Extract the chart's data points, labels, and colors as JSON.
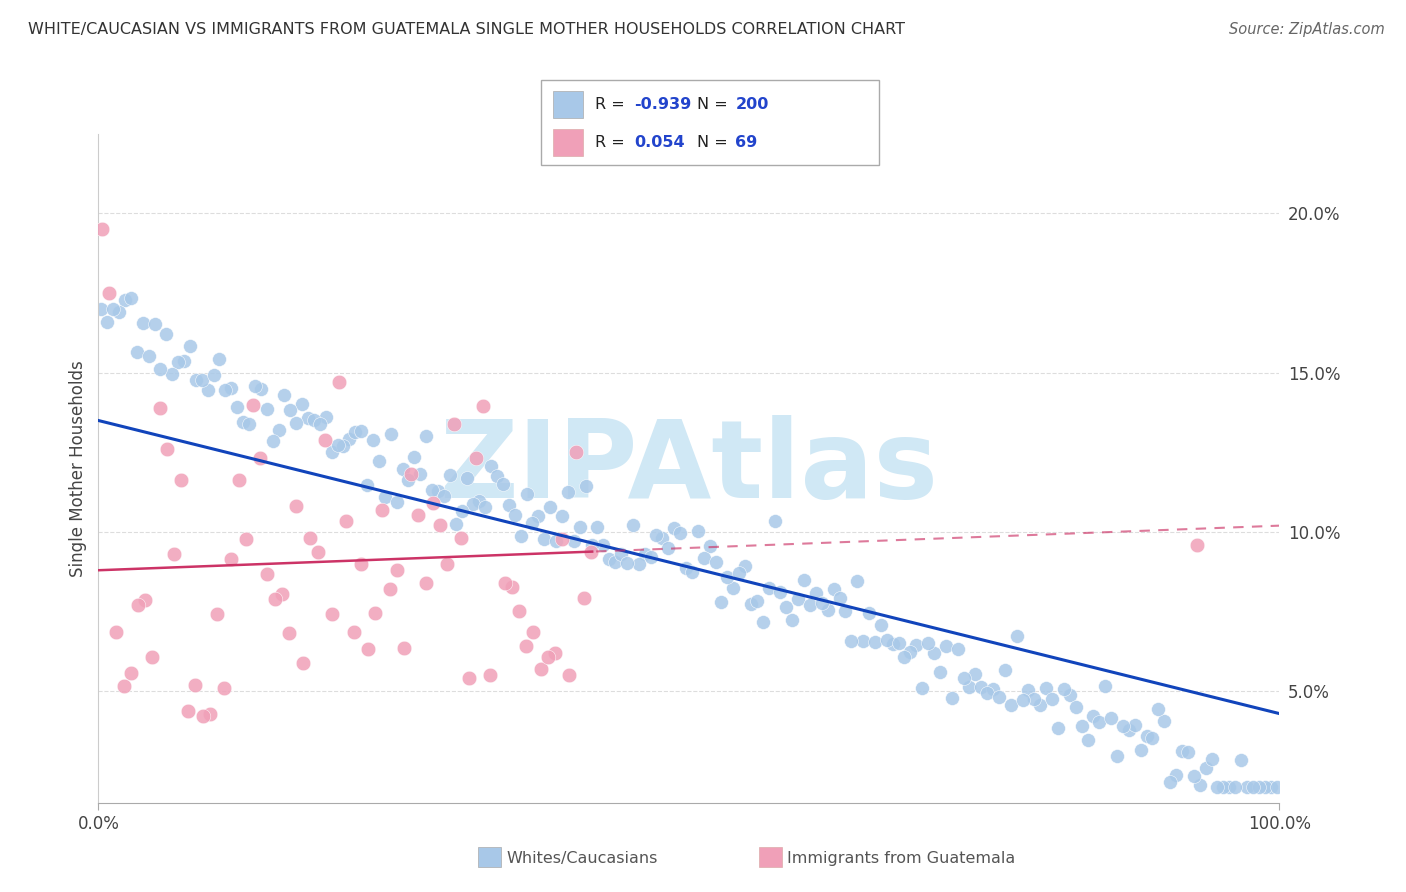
{
  "title": "WHITE/CAUCASIAN VS IMMIGRANTS FROM GUATEMALA SINGLE MOTHER HOUSEHOLDS CORRELATION CHART",
  "source": "Source: ZipAtlas.com",
  "ylabel": "Single Mother Households",
  "y_ticks": [
    0.05,
    0.1,
    0.15,
    0.2
  ],
  "y_tick_labels": [
    "5.0%",
    "10.0%",
    "15.0%",
    "20.0%"
  ],
  "xlim": [
    0.0,
    1.0
  ],
  "ylim": [
    0.015,
    0.225
  ],
  "blue_R": -0.939,
  "blue_N": 200,
  "pink_R": 0.054,
  "pink_N": 69,
  "blue_color": "#a8c8e8",
  "pink_color": "#f0a0b8",
  "blue_line_color": "#1144bb",
  "pink_line_color": "#cc3366",
  "watermark": "ZIPAtlas",
  "watermark_color": "#d0e8f5",
  "legend_label_blue": "Whites/Caucasians",
  "legend_label_pink": "Immigrants from Guatemala",
  "grid_color": "#dddddd",
  "background_color": "#ffffff",
  "blue_seed": 42,
  "pink_seed": 7,
  "blue_intercept": 0.135,
  "blue_slope": -0.092,
  "pink_intercept": 0.088,
  "pink_slope": 0.014,
  "blue_noise_scale": 0.018,
  "pink_noise_scale": 0.03
}
